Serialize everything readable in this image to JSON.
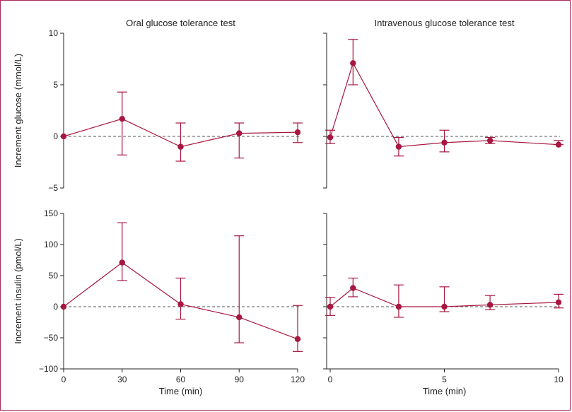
{
  "colors": {
    "series": "#a8173f",
    "frame": "#a8295a",
    "axis": "#222222",
    "zero_line": "#555555"
  },
  "chart_data": [
    {
      "type": "line",
      "panel": "top-left",
      "title": "Oral glucose tolerance test",
      "ylabel": "Increment glucose (mmol/L)",
      "xlabel": "",
      "x_ticks": [],
      "y_ticks": [
        -5,
        0,
        5,
        10
      ],
      "ylim": [
        -5,
        10
      ],
      "xlim": [
        0,
        120
      ],
      "x": [
        0,
        30,
        60,
        90,
        120
      ],
      "values": [
        0,
        1.7,
        -1.0,
        0.3,
        0.4
      ],
      "err_low": [
        0,
        -1.8,
        -2.4,
        -2.1,
        -0.6
      ],
      "err_high": [
        0,
        4.3,
        1.3,
        1.3,
        1.3
      ]
    },
    {
      "type": "line",
      "panel": "top-right",
      "title": "Intravenous glucose tolerance test",
      "ylabel": "",
      "xlabel": "",
      "x_ticks": [],
      "y_ticks": [
        -5,
        0,
        5,
        10
      ],
      "ylim": [
        -5,
        10
      ],
      "xlim": [
        0,
        10
      ],
      "x": [
        0,
        1,
        3,
        5,
        7,
        10
      ],
      "values": [
        -0.1,
        7.1,
        -1.0,
        -0.6,
        -0.4,
        -0.8
      ],
      "err_low": [
        -0.7,
        5.0,
        -1.9,
        -1.5,
        -0.7,
        -0.8
      ],
      "err_high": [
        0.6,
        9.4,
        -0.1,
        0.6,
        -0.1,
        -0.4
      ]
    },
    {
      "type": "line",
      "panel": "bottom-left",
      "title": "",
      "ylabel": "Increment insulin (pmol/L)",
      "xlabel": "Time (min)",
      "x_ticks": [
        0,
        30,
        60,
        90,
        120
      ],
      "y_ticks": [
        -100,
        -50,
        0,
        50,
        100,
        150
      ],
      "ylim": [
        -100,
        150
      ],
      "xlim": [
        0,
        120
      ],
      "x": [
        0,
        30,
        60,
        90,
        120
      ],
      "values": [
        0,
        71,
        4,
        -17,
        -52
      ],
      "err_low": [
        0,
        42,
        -20,
        -58,
        -72
      ],
      "err_high": [
        0,
        135,
        46,
        114,
        2
      ]
    },
    {
      "type": "line",
      "panel": "bottom-right",
      "title": "",
      "ylabel": "",
      "xlabel": "Time (min)",
      "x_ticks": [
        0,
        5,
        10
      ],
      "y_ticks": [
        -100,
        -50,
        0,
        50,
        100,
        150
      ],
      "ylim": [
        -100,
        150
      ],
      "xlim": [
        0,
        10
      ],
      "x": [
        0,
        1,
        3,
        5,
        7,
        10
      ],
      "values": [
        0,
        30,
        0,
        0,
        3,
        7
      ],
      "err_low": [
        -14,
        16,
        -17,
        -8,
        -5,
        -2
      ],
      "err_high": [
        15,
        46,
        35,
        32,
        18,
        20
      ]
    }
  ],
  "tick_labels": {
    "glucose": [
      "−5",
      "0",
      "5",
      "10"
    ],
    "insulin": [
      "−100",
      "−50",
      "0",
      "50",
      "100",
      "150"
    ],
    "time_oral": [
      "0",
      "30",
      "60",
      "90",
      "120"
    ],
    "time_iv": [
      "0",
      "5",
      "10"
    ]
  }
}
